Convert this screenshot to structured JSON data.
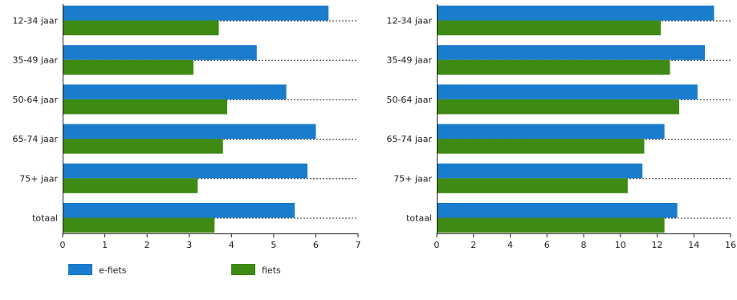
{
  "chart_data": [
    {
      "type": "bar",
      "orientation": "horizontal",
      "categories": [
        "12-34 jaar",
        "35-49 jaar",
        "50-64 jaar",
        "65-74 jaar",
        "75+ jaar",
        "totaal"
      ],
      "series": [
        {
          "name": "e-fiets",
          "color": "#1a7ccc",
          "values": [
            6.3,
            4.6,
            5.3,
            6.0,
            5.8,
            5.5
          ]
        },
        {
          "name": "fiets",
          "color": "#3e8a13",
          "values": [
            3.7,
            3.1,
            3.9,
            3.8,
            3.2,
            3.6
          ]
        }
      ],
      "xlim": [
        0,
        7
      ],
      "xticks": [
        0,
        1,
        2,
        3,
        4,
        5,
        6,
        7
      ],
      "grid": "dotted category separators"
    },
    {
      "type": "bar",
      "orientation": "horizontal",
      "categories": [
        "12-34 jaar",
        "35-49 jaar",
        "50-64 jaar",
        "65-74 jaar",
        "75+ jaar",
        "totaal"
      ],
      "series": [
        {
          "name": "e-fiets",
          "color": "#1a7ccc",
          "values": [
            15.1,
            14.6,
            14.2,
            12.4,
            11.2,
            13.1
          ]
        },
        {
          "name": "fiets",
          "color": "#3e8a13",
          "values": [
            12.2,
            12.7,
            13.2,
            11.3,
            10.4,
            12.4
          ]
        }
      ],
      "xlim": [
        0,
        16
      ],
      "xticks": [
        0,
        2,
        4,
        6,
        8,
        10,
        12,
        14,
        16
      ],
      "grid": "dotted category separators"
    }
  ],
  "legend": {
    "placement": "bottom-left",
    "items": [
      {
        "label": "e-fiets",
        "color": "#1a7ccc"
      },
      {
        "label": "fiets",
        "color": "#3e8a13"
      }
    ]
  }
}
